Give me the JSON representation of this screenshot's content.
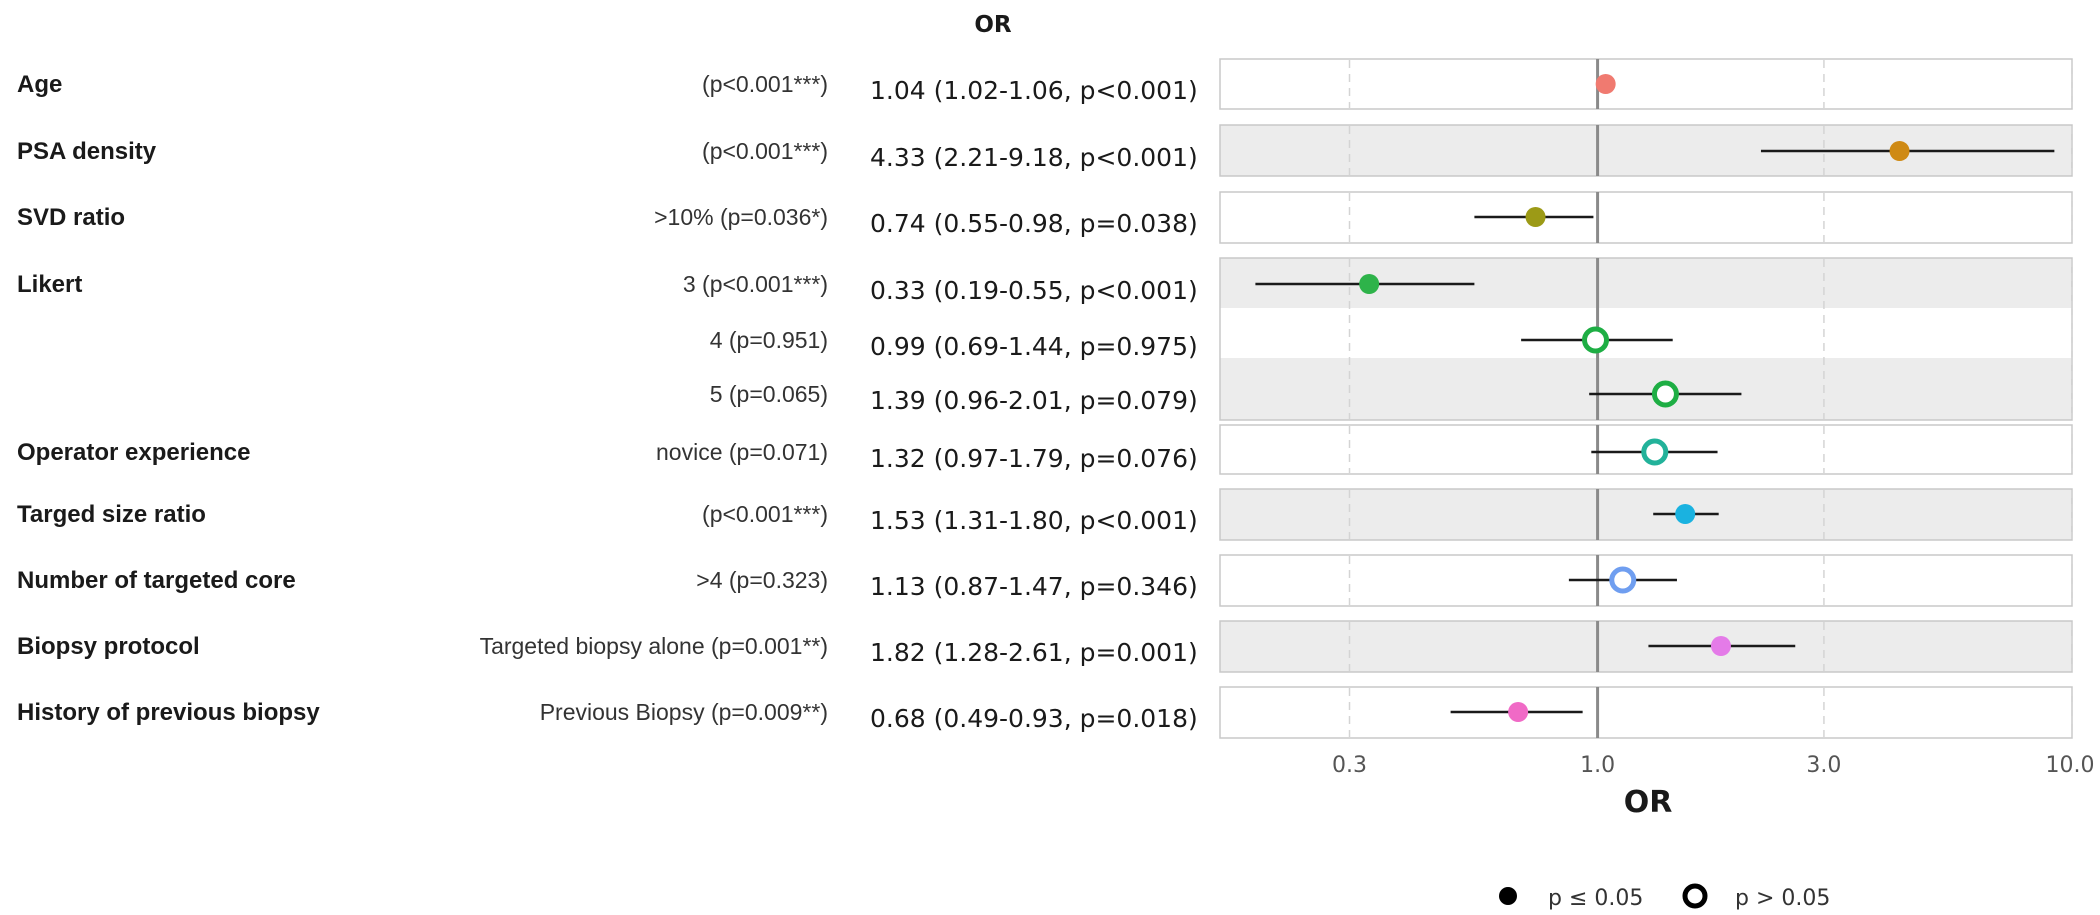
{
  "chart_data": {
    "type": "forest",
    "column_header": "OR",
    "xlabel": "OR",
    "x_scale": "log",
    "xlim": [
      0.16,
      10.0
    ],
    "x_ticks": [
      0.3,
      1.0,
      3.0,
      10.0
    ],
    "x_tick_labels": [
      "0.3",
      "1.0",
      "3.0",
      "10.0"
    ],
    "reference_line": 1.0,
    "grid": "vertical dashed at ticks",
    "legend": {
      "position": "bottom-right",
      "items": [
        {
          "label": "p ≤ 0.05",
          "marker": "filled"
        },
        {
          "label": "p > 0.05",
          "marker": "open"
        }
      ]
    },
    "rows": [
      {
        "variable": "Age",
        "level": "(p<0.001***)",
        "or_text": "1.04 (1.02-1.06, p<0.001)",
        "or": 1.04,
        "lower": 1.02,
        "upper": 1.06,
        "significant": true,
        "color": "#f07a70"
      },
      {
        "variable": "PSA density",
        "level": "(p<0.001***)",
        "or_text": "4.33 (2.21-9.18, p<0.001)",
        "or": 4.33,
        "lower": 2.21,
        "upper": 9.18,
        "significant": true,
        "color": "#cf8a14"
      },
      {
        "variable": "SVD ratio",
        "level": ">10% (p=0.036*)",
        "or_text": "0.74 (0.55-0.98, p=0.038)",
        "or": 0.74,
        "lower": 0.55,
        "upper": 0.98,
        "significant": true,
        "color": "#9c9a16"
      },
      {
        "variable": "Likert",
        "level": "3 (p<0.001***)",
        "or_text": "0.33 (0.19-0.55, p<0.001)",
        "or": 0.33,
        "lower": 0.19,
        "upper": 0.55,
        "significant": true,
        "color": "#2eb34a"
      },
      {
        "variable": "",
        "level": "4 (p=0.951)",
        "or_text": "0.99 (0.69-1.44, p=0.975)",
        "or": 0.99,
        "lower": 0.69,
        "upper": 1.44,
        "significant": false,
        "color": "#1eae44"
      },
      {
        "variable": "",
        "level": "5 (p=0.065)",
        "or_text": "1.39 (0.96-2.01, p=0.079)",
        "or": 1.39,
        "lower": 0.96,
        "upper": 2.01,
        "significant": false,
        "color": "#1eae44"
      },
      {
        "variable": "Operator experience",
        "level": "novice (p=0.071)",
        "or_text": "1.32 (0.97-1.79, p=0.076)",
        "or": 1.32,
        "lower": 0.97,
        "upper": 1.79,
        "significant": false,
        "color": "#22b29a"
      },
      {
        "variable": "Targed size ratio",
        "level": "(p<0.001***)",
        "or_text": "1.53 (1.31-1.80, p<0.001)",
        "or": 1.53,
        "lower": 1.31,
        "upper": 1.8,
        "significant": true,
        "color": "#1ab2e0"
      },
      {
        "variable": "Number of targeted core",
        "level": ">4 (p=0.323)",
        "or_text": "1.13 (0.87-1.47, p=0.346)",
        "or": 1.13,
        "lower": 0.87,
        "upper": 1.47,
        "significant": false,
        "color": "#6f9ef0"
      },
      {
        "variable": "Biopsy protocol",
        "level": "Targeted biopsy alone (p=0.001**)",
        "or_text": "1.82 (1.28-2.61, p=0.001)",
        "or": 1.82,
        "lower": 1.28,
        "upper": 2.61,
        "significant": true,
        "color": "#e47be8"
      },
      {
        "variable": "History of previous biopsy",
        "level": "Previous Biopsy (p=0.009**)",
        "or_text": "0.68 (0.49-0.93, p=0.018)",
        "or": 0.68,
        "lower": 0.49,
        "upper": 0.93,
        "significant": true,
        "color": "#f06ac6"
      }
    ]
  }
}
